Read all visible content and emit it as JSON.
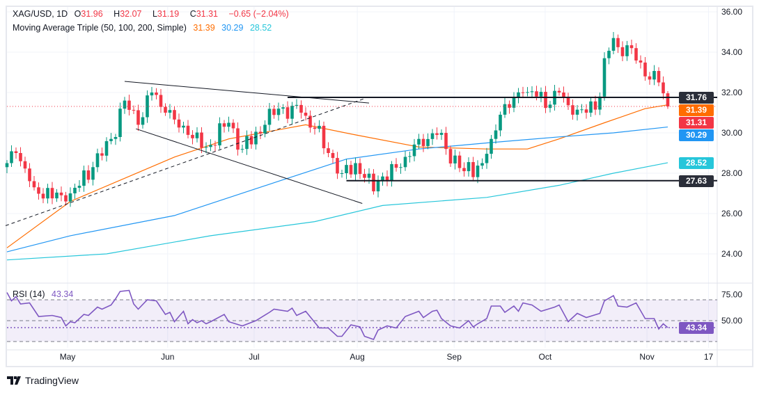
{
  "header": {
    "symbol": "XAG/USD, 1D",
    "o_label": "O",
    "o": "31.96",
    "h_label": "H",
    "h": "32.07",
    "l_label": "L",
    "l": "31.19",
    "c_label": "C",
    "c": "31.31",
    "change": "−0.65 (−2.04%)"
  },
  "ma_legend": {
    "label": "Moving Average Triple (50, 100, 200, Simple)",
    "v50": "31.39",
    "v100": "30.29",
    "v200": "28.52"
  },
  "rsi_legend": {
    "label": "RSI (14)",
    "value": "43.34"
  },
  "price_tags": [
    {
      "text": "31.76",
      "value": 31.76,
      "color": "#2a2e39"
    },
    {
      "text": "31.39",
      "value": 31.39,
      "color": "#ff6d00"
    },
    {
      "text": "31.31",
      "value": 31.31,
      "color": "#f23645"
    },
    {
      "text": "30.29",
      "value": 30.29,
      "color": "#2196f3"
    },
    {
      "text": "28.52",
      "value": 28.52,
      "color": "#26c6da"
    },
    {
      "text": "27.63",
      "value": 27.63,
      "color": "#2a2e39"
    }
  ],
  "rsi_tag": {
    "text": "43.34",
    "value": 43.34,
    "color": "#7e57c2"
  },
  "brand": "TradingView",
  "chart_data": {
    "type": "candlestick",
    "title": "XAG/USD, 1D",
    "x_axis": {
      "unit": "trading-day index",
      "ticks": [
        {
          "label": "May",
          "idx": 13.4
        },
        {
          "label": "Jun",
          "idx": 35.5
        },
        {
          "label": "Jul",
          "idx": 54.6
        },
        {
          "label": "Aug",
          "idx": 77.4
        },
        {
          "label": "Sep",
          "idx": 98.8
        },
        {
          "label": "Oct",
          "idx": 118.9
        },
        {
          "label": "Nov",
          "idx": 141.4
        },
        {
          "label": "17",
          "idx": 155
        }
      ]
    },
    "y_axis": {
      "ylim": [
        23,
        36.3
      ],
      "ticks": [
        "36.00",
        "34.00",
        "32.00",
        "30.00",
        "28.00",
        "26.00",
        "24.00"
      ],
      "tick_values": [
        36,
        34,
        32,
        30,
        28,
        26,
        24
      ]
    },
    "last_candle": {
      "o": 31.96,
      "h": 32.07,
      "l": 31.19,
      "c": 31.31
    },
    "close_keypoints": [
      [
        0,
        28.5
      ],
      [
        2,
        29
      ],
      [
        6,
        27.3
      ],
      [
        13,
        26.6
      ],
      [
        19,
        28.3
      ],
      [
        23,
        29.7
      ],
      [
        26,
        31.6
      ],
      [
        29,
        30.4
      ],
      [
        32,
        32
      ],
      [
        35,
        31
      ],
      [
        40,
        29.9
      ],
      [
        44,
        29.3
      ],
      [
        49,
        30.5
      ],
      [
        52,
        29.2
      ],
      [
        57,
        30.4
      ],
      [
        60,
        31.2
      ],
      [
        65,
        31
      ],
      [
        68,
        30.2
      ],
      [
        71,
        29
      ],
      [
        74,
        28
      ],
      [
        77,
        28.5
      ],
      [
        81,
        27.1
      ],
      [
        82,
        27.6
      ],
      [
        87,
        28.3
      ],
      [
        91,
        29.7
      ],
      [
        95,
        29.9
      ],
      [
        97,
        29.2
      ],
      [
        101,
        28.1
      ],
      [
        105,
        28.5
      ],
      [
        107,
        29.7
      ],
      [
        109,
        30.9
      ],
      [
        114,
        32
      ],
      [
        117,
        31.8
      ],
      [
        120,
        31.4
      ],
      [
        122,
        32
      ],
      [
        125,
        30.9
      ],
      [
        128,
        31
      ],
      [
        131,
        31.8
      ],
      [
        132,
        33.7
      ],
      [
        134,
        34.7
      ],
      [
        136,
        33.8
      ],
      [
        138,
        34.2
      ],
      [
        141,
        32.8
      ],
      [
        144,
        32.5
      ],
      [
        145,
        31.96
      ]
    ],
    "series": [
      {
        "name": "SMA 50",
        "color": "#ff6d00",
        "points": [
          [
            0,
            24.3
          ],
          [
            14,
            26.6
          ],
          [
            37,
            28.8
          ],
          [
            49,
            29.7
          ],
          [
            66,
            30.4
          ],
          [
            77,
            29.9
          ],
          [
            91,
            29.3
          ],
          [
            106,
            29.2
          ],
          [
            115,
            29.2
          ],
          [
            122,
            29.7
          ],
          [
            132,
            30.5
          ],
          [
            141,
            31.2
          ],
          [
            146,
            31.39
          ]
        ]
      },
      {
        "name": "SMA 100",
        "color": "#2196f3",
        "points": [
          [
            0,
            24.1
          ],
          [
            14,
            24.9
          ],
          [
            37,
            25.9
          ],
          [
            60,
            27.6
          ],
          [
            75,
            28.7
          ],
          [
            91,
            29.2
          ],
          [
            106,
            29.5
          ],
          [
            122,
            29.8
          ],
          [
            134,
            30.0
          ],
          [
            146,
            30.29
          ]
        ]
      },
      {
        "name": "SMA 200",
        "color": "#26c6da",
        "points": [
          [
            0,
            23.7
          ],
          [
            22,
            24
          ],
          [
            45,
            24.9
          ],
          [
            68,
            25.6
          ],
          [
            83,
            26.4
          ],
          [
            106,
            26.8
          ],
          [
            122,
            27.4
          ],
          [
            134,
            28
          ],
          [
            146,
            28.52
          ]
        ]
      }
    ],
    "annotations": {
      "trendlines": [
        {
          "name": "upper-wedge-line",
          "from": [
            26,
            32.55
          ],
          "to": [
            80,
            31.48
          ],
          "style": "solid"
        },
        {
          "name": "lower-wedge-line",
          "from": [
            28.5,
            30.2
          ],
          "to": [
            78.5,
            26.5
          ],
          "style": "solid"
        },
        {
          "name": "rising-support-line",
          "from": [
            -0.3,
            25.4
          ],
          "to": [
            79,
            31.7
          ],
          "style": "dashed"
        }
      ],
      "horizontal": [
        {
          "value": 31.76,
          "from_idx": 62
        },
        {
          "value": 27.63,
          "from_idx": 75
        }
      ],
      "last_price_line": 31.31
    },
    "colors": {
      "up": "#089981",
      "down": "#f23645"
    },
    "rsi": {
      "name": "RSI (14)",
      "color": "#7e57c2",
      "levels": [
        70,
        50,
        30
      ],
      "ticks": [
        "75.00",
        "50.00"
      ],
      "tick_values": [
        75,
        50
      ],
      "points": [
        [
          0,
          77
        ],
        [
          1,
          69
        ],
        [
          2,
          73
        ],
        [
          3,
          66
        ],
        [
          5,
          67
        ],
        [
          7,
          54
        ],
        [
          10,
          55
        ],
        [
          12,
          53
        ],
        [
          13,
          45
        ],
        [
          14,
          49
        ],
        [
          15,
          48
        ],
        [
          17,
          56
        ],
        [
          18,
          55
        ],
        [
          20,
          63
        ],
        [
          21,
          61
        ],
        [
          23,
          65
        ],
        [
          24,
          71
        ],
        [
          25,
          78
        ],
        [
          27,
          79
        ],
        [
          28,
          66
        ],
        [
          29,
          61
        ],
        [
          31,
          70
        ],
        [
          33,
          69
        ],
        [
          35,
          56
        ],
        [
          36,
          58
        ],
        [
          37,
          49
        ],
        [
          39,
          59
        ],
        [
          40,
          47
        ],
        [
          41,
          51
        ],
        [
          42,
          48
        ],
        [
          43,
          50
        ],
        [
          44,
          47
        ],
        [
          45,
          49
        ],
        [
          48,
          56
        ],
        [
          49,
          49
        ],
        [
          52,
          45
        ],
        [
          55,
          50
        ],
        [
          58,
          58
        ],
        [
          59,
          61
        ],
        [
          62,
          59
        ],
        [
          63,
          62
        ],
        [
          64,
          55
        ],
        [
          66,
          59
        ],
        [
          69,
          43
        ],
        [
          71,
          43
        ],
        [
          73,
          35
        ],
        [
          74,
          35
        ],
        [
          76,
          46
        ],
        [
          78,
          44
        ],
        [
          79,
          35
        ],
        [
          81,
          32
        ],
        [
          82,
          41
        ],
        [
          84,
          45
        ],
        [
          86,
          43
        ],
        [
          88,
          54
        ],
        [
          91,
          59
        ],
        [
          92,
          53
        ],
        [
          94,
          59
        ],
        [
          95,
          60
        ],
        [
          96,
          52
        ],
        [
          98,
          45
        ],
        [
          100,
          43
        ],
        [
          102,
          50
        ],
        [
          103,
          44
        ],
        [
          104,
          47
        ],
        [
          106,
          52
        ],
        [
          107,
          64
        ],
        [
          109,
          64
        ],
        [
          110,
          58
        ],
        [
          112,
          64
        ],
        [
          113,
          59
        ],
        [
          114,
          67
        ],
        [
          116,
          65
        ],
        [
          118,
          59
        ],
        [
          121,
          63
        ],
        [
          122,
          65
        ],
        [
          124,
          49
        ],
        [
          126,
          57
        ],
        [
          128,
          53
        ],
        [
          131,
          57
        ],
        [
          132,
          69
        ],
        [
          134,
          74
        ],
        [
          135,
          64
        ],
        [
          137,
          63
        ],
        [
          139,
          67
        ],
        [
          141,
          52
        ],
        [
          143,
          52
        ],
        [
          144,
          42
        ],
        [
          145,
          47
        ],
        [
          146,
          43.34
        ]
      ]
    }
  }
}
